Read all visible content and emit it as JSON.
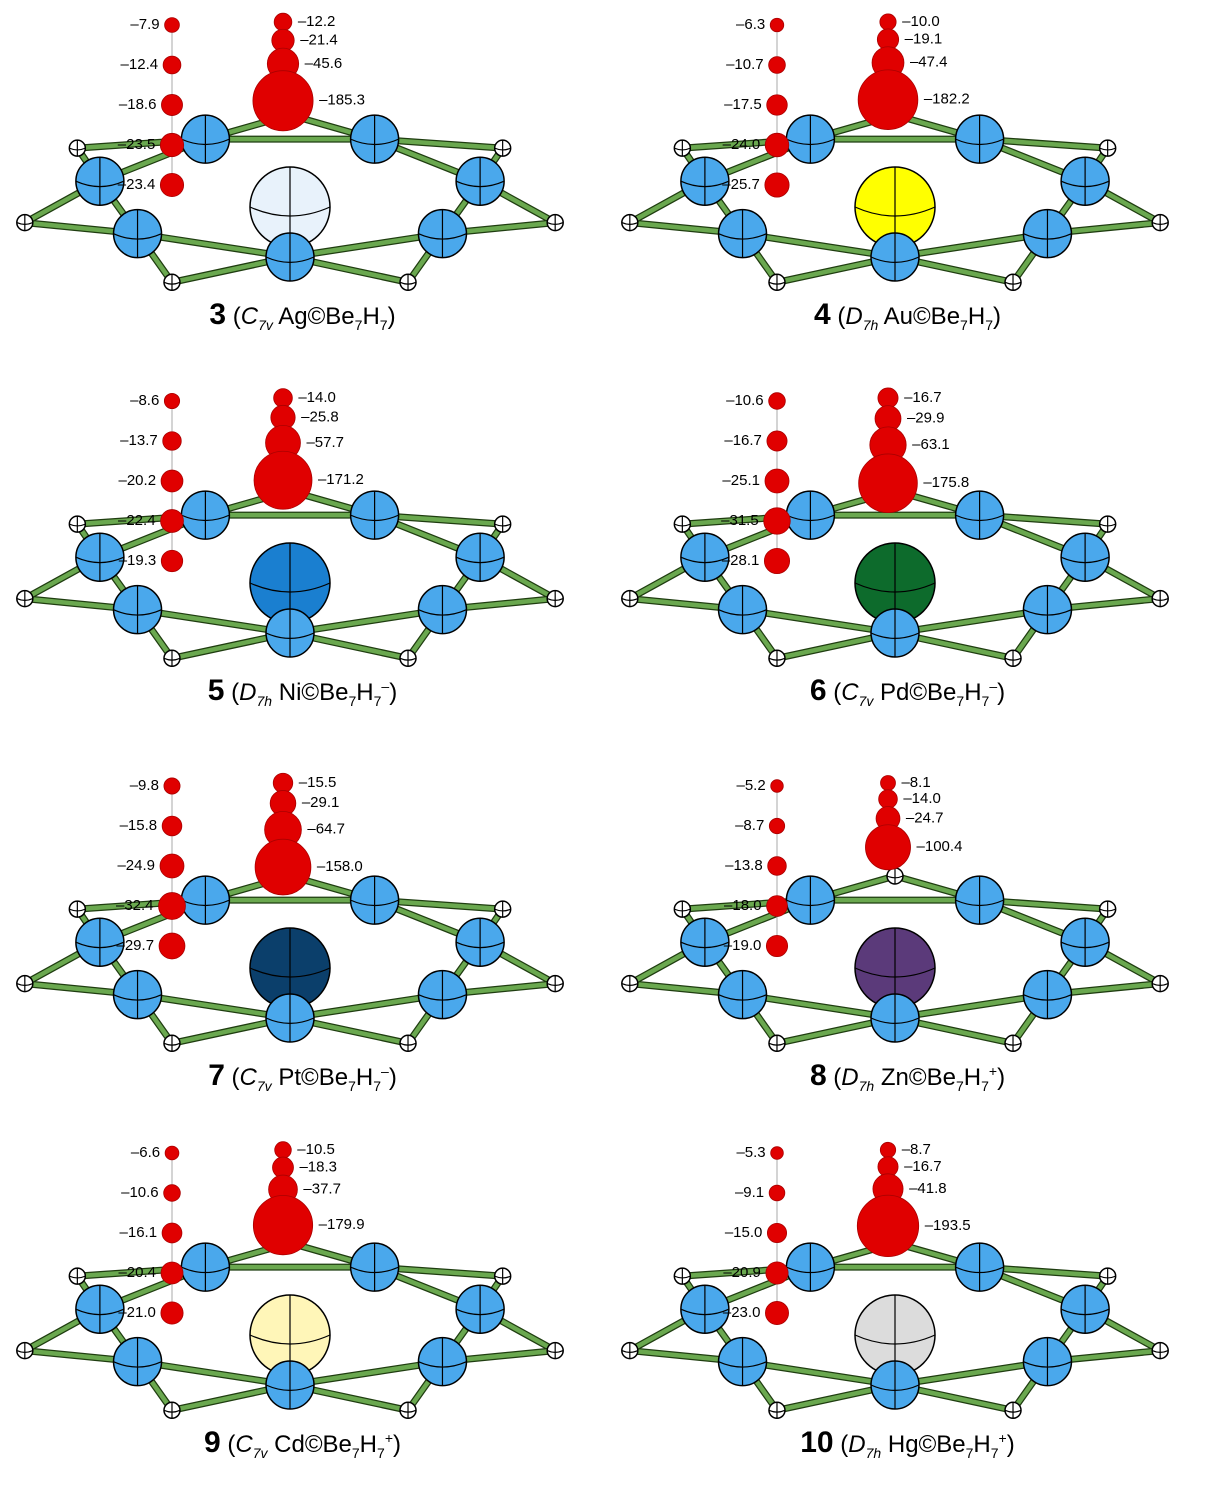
{
  "panels": [
    {
      "caption": [
        {
          "text": "3",
          "bold": true
        },
        {
          "text": " ("
        },
        {
          "text": "C",
          "italic": true
        },
        {
          "text": "7v",
          "italic": true,
          "sub": true
        },
        {
          "text": " Ag©Be"
        },
        {
          "text": "7",
          "sub": true
        },
        {
          "text": "H"
        },
        {
          "text": "7",
          "sub": true
        },
        {
          "text": ")"
        }
      ],
      "center_color": "#e8f2fb",
      "left_column": [
        "–7.9",
        "–12.4",
        "–18.6",
        "–23.5",
        "–23.4"
      ],
      "right_column": [
        "–12.2",
        "–21.4",
        "–45.6",
        "–185.3"
      ]
    },
    {
      "caption": [
        {
          "text": "4",
          "bold": true
        },
        {
          "text": " ("
        },
        {
          "text": "D",
          "italic": true
        },
        {
          "text": "7h",
          "italic": true,
          "sub": true
        },
        {
          "text": " Au©Be"
        },
        {
          "text": "7",
          "sub": true
        },
        {
          "text": "H"
        },
        {
          "text": "7",
          "sub": true
        },
        {
          "text": ")"
        }
      ],
      "center_color": "#ffff00",
      "left_column": [
        "–6.3",
        "–10.7",
        "–17.5",
        "–24.0",
        "–25.7"
      ],
      "right_column": [
        "–10.0",
        "–19.1",
        "–47.4",
        "–182.2"
      ]
    },
    {
      "caption": [
        {
          "text": "5",
          "bold": true
        },
        {
          "text": " ("
        },
        {
          "text": "D",
          "italic": true
        },
        {
          "text": "7h",
          "italic": true,
          "sub": true
        },
        {
          "text": " Ni©Be"
        },
        {
          "text": "7",
          "sub": true
        },
        {
          "text": "H"
        },
        {
          "text": "7",
          "sub": true
        },
        {
          "text": "–",
          "sup": true
        },
        {
          "text": ")"
        }
      ],
      "center_color": "#1a7fd0",
      "left_column": [
        "–8.6",
        "–13.7",
        "–20.2",
        "–22.4",
        "–19.3"
      ],
      "right_column": [
        "–14.0",
        "–25.8",
        "–57.7",
        "–171.2"
      ]
    },
    {
      "caption": [
        {
          "text": "6",
          "bold": true
        },
        {
          "text": " ("
        },
        {
          "text": "C",
          "italic": true
        },
        {
          "text": "7v",
          "italic": true,
          "sub": true
        },
        {
          "text": " Pd©Be"
        },
        {
          "text": "7",
          "sub": true
        },
        {
          "text": "H"
        },
        {
          "text": "7",
          "sub": true
        },
        {
          "text": "–",
          "sup": true
        },
        {
          "text": ")"
        }
      ],
      "center_color": "#0d6b2c",
      "left_column": [
        "–10.6",
        "–16.7",
        "–25.1",
        "–31.5",
        "–28.1"
      ],
      "right_column": [
        "–16.7",
        "–29.9",
        "–63.1",
        "–175.8"
      ]
    },
    {
      "caption": [
        {
          "text": "7",
          "bold": true
        },
        {
          "text": " ("
        },
        {
          "text": "C",
          "italic": true
        },
        {
          "text": "7v",
          "italic": true,
          "sub": true
        },
        {
          "text": " Pt©Be"
        },
        {
          "text": "7",
          "sub": true
        },
        {
          "text": "H"
        },
        {
          "text": "7",
          "sub": true
        },
        {
          "text": "–",
          "sup": true
        },
        {
          "text": ")"
        }
      ],
      "center_color": "#0b3f6b",
      "left_column": [
        "–9.8",
        "–15.8",
        "–24.9",
        "–32.4",
        "–29.7"
      ],
      "right_column": [
        "–15.5",
        "–29.1",
        "–64.7",
        "–158.0"
      ]
    },
    {
      "caption": [
        {
          "text": "8",
          "bold": true
        },
        {
          "text": " ("
        },
        {
          "text": "D",
          "italic": true
        },
        {
          "text": "7h",
          "italic": true,
          "sub": true
        },
        {
          "text": " Zn©Be"
        },
        {
          "text": "7",
          "sub": true
        },
        {
          "text": "H"
        },
        {
          "text": "7",
          "sub": true
        },
        {
          "text": "+",
          "sup": true
        },
        {
          "text": ")"
        }
      ],
      "center_color": "#5b3a7a",
      "left_column": [
        "–5.2",
        "–8.7",
        "–13.8",
        "–18.0",
        "–19.0"
      ],
      "right_column": [
        "–8.1",
        "–14.0",
        "–24.7",
        "–100.4"
      ]
    },
    {
      "caption": [
        {
          "text": "9",
          "bold": true
        },
        {
          "text": " ("
        },
        {
          "text": "C",
          "italic": true
        },
        {
          "text": "7v",
          "italic": true,
          "sub": true
        },
        {
          "text": " Cd©Be"
        },
        {
          "text": "7",
          "sub": true
        },
        {
          "text": "H"
        },
        {
          "text": "7",
          "sub": true
        },
        {
          "text": "+",
          "sup": true
        },
        {
          "text": ")"
        }
      ],
      "center_color": "#fff6b8",
      "left_column": [
        "–6.6",
        "–10.6",
        "–16.1",
        "–20.4",
        "–21.0"
      ],
      "right_column": [
        "–10.5",
        "–18.3",
        "–37.7",
        "–179.9"
      ]
    },
    {
      "caption": [
        {
          "text": "10",
          "bold": true
        },
        {
          "text": " ("
        },
        {
          "text": "D",
          "italic": true
        },
        {
          "text": "7h",
          "italic": true,
          "sub": true
        },
        {
          "text": " Hg©Be"
        },
        {
          "text": "7",
          "sub": true
        },
        {
          "text": "H"
        },
        {
          "text": "7",
          "sub": true
        },
        {
          "text": "+",
          "sup": true
        },
        {
          "text": ")"
        }
      ],
      "center_color": "#dcdcdc",
      "left_column": [
        "–5.3",
        "–9.1",
        "–15.0",
        "–20.9",
        "–23.0"
      ],
      "right_column": [
        "–8.7",
        "–16.7",
        "–41.8",
        "–193.5"
      ]
    }
  ]
}
